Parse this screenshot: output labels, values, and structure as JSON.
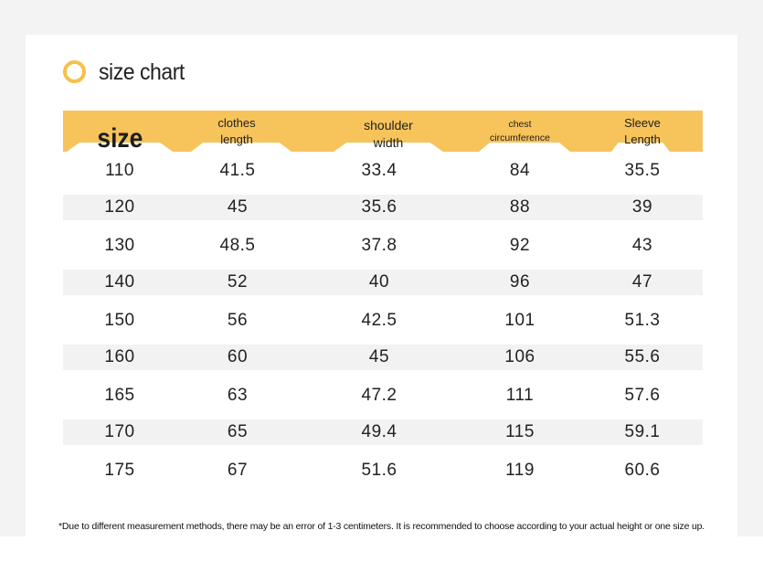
{
  "title": "size chart",
  "colors": {
    "accent": "#f7c35b",
    "ring": "#f5c04a",
    "shade": "#f2f2f2"
  },
  "headers": [
    {
      "line1": "size",
      "line2": ""
    },
    {
      "line1": "clothes",
      "line2": "length"
    },
    {
      "line1": "shoulder",
      "line2": "width"
    },
    {
      "line1": "chest",
      "line2": "circumference"
    },
    {
      "line1": "Sleeve",
      "line2": "Length"
    }
  ],
  "rows": [
    [
      "110",
      "41.5",
      "33.4",
      "84",
      "35.5"
    ],
    [
      "120",
      "45",
      "35.6",
      "88",
      "39"
    ],
    [
      "130",
      "48.5",
      "37.8",
      "92",
      "43"
    ],
    [
      "140",
      "52",
      "40",
      "96",
      "47"
    ],
    [
      "150",
      "56",
      "42.5",
      "101",
      "51.3"
    ],
    [
      "160",
      "60",
      "45",
      "106",
      "55.6"
    ],
    [
      "165",
      "63",
      "47.2",
      "111",
      "57.6"
    ],
    [
      "170",
      "65",
      "49.4",
      "115",
      "59.1"
    ],
    [
      "175",
      "67",
      "51.6",
      "119",
      "60.6"
    ]
  ],
  "note": "*Due to different measurement methods, there may be an error of 1-3 centimeters. It is recommended to choose according to your actual height or one size up."
}
